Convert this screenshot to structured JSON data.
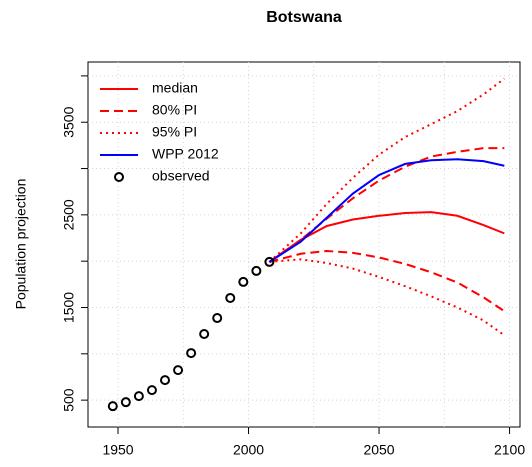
{
  "chart_data": {
    "type": "line",
    "title": "Botswana",
    "y_label": "Population projection",
    "xlim": [
      1938.5,
      2104
    ],
    "ylim": [
      210,
      4150
    ],
    "xticks": [
      1950,
      {
        "value": 1975,
        "label": null
      },
      2000,
      {
        "value": 2025,
        "label": null
      },
      2050,
      {
        "value": 2075,
        "label": null
      },
      2100
    ],
    "yticks": [
      500,
      {
        "value": 1000,
        "label": null
      },
      1500,
      {
        "value": 2000,
        "label": null
      },
      2500,
      {
        "value": 3000,
        "label": null
      },
      3500,
      {
        "value": 4000,
        "label": null
      }
    ],
    "grid": true,
    "legend": "top-left",
    "series": [
      {
        "name": "median",
        "color": "#ff0000",
        "dash": "solid",
        "x": [
          2008,
          2020,
          2030,
          2040,
          2050,
          2060,
          2070,
          2080,
          2090,
          2098
        ],
        "values": [
          1992,
          2230,
          2380,
          2450,
          2490,
          2520,
          2530,
          2490,
          2390,
          2300
        ]
      },
      {
        "name": "80% PI",
        "color": "#ff0000",
        "dash": "dashed",
        "x": [
          2008,
          2020,
          2030,
          2040,
          2050,
          2060,
          2070,
          2080,
          2090,
          2098
        ],
        "upper": [
          1992,
          2230,
          2460,
          2680,
          2870,
          3020,
          3130,
          3180,
          3220,
          3220
        ],
        "lower": [
          1992,
          2080,
          2110,
          2090,
          2040,
          1970,
          1880,
          1770,
          1610,
          1460
        ]
      },
      {
        "name": "95% PI",
        "color": "#ff0000",
        "dash": "dotted",
        "x": [
          2008,
          2020,
          2030,
          2040,
          2050,
          2060,
          2070,
          2080,
          2090,
          2098
        ],
        "upper": [
          1992,
          2300,
          2620,
          2900,
          3150,
          3340,
          3480,
          3620,
          3800,
          3970
        ],
        "lower": [
          1992,
          2020,
          1980,
          1920,
          1830,
          1730,
          1620,
          1500,
          1360,
          1200
        ]
      },
      {
        "name": "WPP 2012",
        "color": "#0000ff",
        "dash": "solid",
        "x": [
          2008,
          2020,
          2030,
          2040,
          2050,
          2060,
          2070,
          2080,
          2090,
          2098
        ],
        "values": [
          1992,
          2210,
          2470,
          2730,
          2930,
          3050,
          3090,
          3100,
          3080,
          3030
        ]
      },
      {
        "name": "observed",
        "color": "#000000",
        "dash": "points",
        "x": [
          1948,
          1953,
          1958,
          1963,
          1968,
          1973,
          1978,
          1983,
          1988,
          1993,
          1998,
          2003,
          2008
        ],
        "values": [
          435,
          478,
          543,
          608,
          716,
          824,
          1008,
          1214,
          1386,
          1603,
          1776,
          1895,
          1992
        ]
      }
    ]
  }
}
